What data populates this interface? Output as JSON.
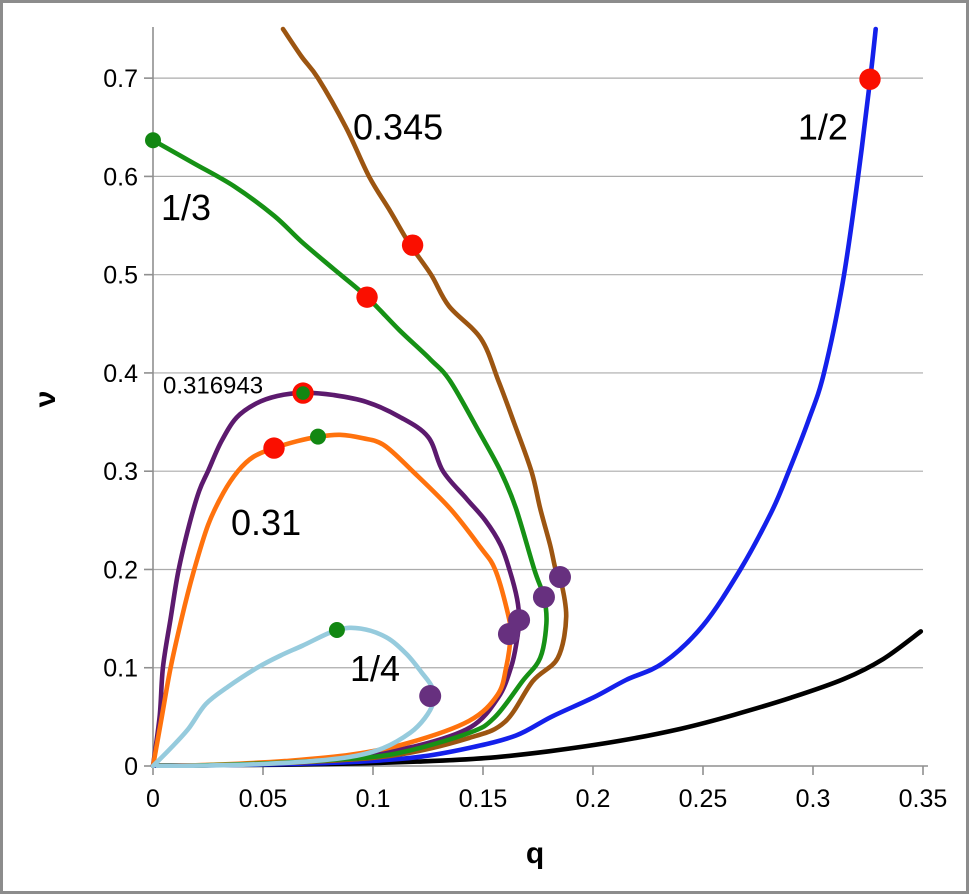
{
  "figure": {
    "background": "#ffffff",
    "border_color": "#8c8c8c"
  },
  "chart_data": {
    "type": "line",
    "title": "",
    "xlabel": "q",
    "ylabel": "ν",
    "xlim": [
      0,
      0.35
    ],
    "ylim": [
      0,
      0.75
    ],
    "grid": {
      "horizontal": true,
      "vertical": false,
      "color": "#ababab",
      "y_values": [
        0.1,
        0.2,
        0.3,
        0.4,
        0.5,
        0.6,
        0.7
      ]
    },
    "axis_color": "#8f8f8f",
    "text_color": "#000000",
    "x_ticks": {
      "values": [
        0,
        0.05,
        0.1,
        0.15,
        0.2,
        0.25,
        0.3,
        0.35
      ],
      "labels": [
        "0",
        "0.05",
        "0.1",
        "0.15",
        "0.2",
        "0.25",
        "0.3",
        "0.35"
      ]
    },
    "y_ticks": {
      "values": [
        0,
        0.1,
        0.2,
        0.3,
        0.4,
        0.5,
        0.6,
        0.7
      ],
      "labels": [
        "0",
        "0.1",
        "0.2",
        "0.3",
        "0.4",
        "0.5",
        "0.6",
        "0.7"
      ]
    },
    "series": [
      {
        "name": "black-curve",
        "label": "",
        "color": "#000000",
        "width": 4.6,
        "points": [
          [
            0,
            0.0005
          ],
          [
            0.04,
            0.001
          ],
          [
            0.08,
            0.002
          ],
          [
            0.12,
            0.0045
          ],
          [
            0.151,
            0.008
          ],
          [
            0.18,
            0.015
          ],
          [
            0.212,
            0.0255
          ],
          [
            0.24,
            0.038
          ],
          [
            0.264,
            0.052
          ],
          [
            0.29,
            0.0695
          ],
          [
            0.314,
            0.0885
          ],
          [
            0.332,
            0.109
          ],
          [
            0.349,
            0.137
          ]
        ]
      },
      {
        "name": "blue-curve",
        "label": "1/2",
        "color": "#1420eb",
        "width": 4.6,
        "points": [
          [
            0,
            0
          ],
          [
            0.05,
            0.0015
          ],
          [
            0.09,
            0.004
          ],
          [
            0.12,
            0.009
          ],
          [
            0.1436,
            0.0183
          ],
          [
            0.165,
            0.031
          ],
          [
            0.181,
            0.05
          ],
          [
            0.2,
            0.0695
          ],
          [
            0.215,
            0.0875
          ],
          [
            0.232,
            0.105
          ],
          [
            0.25,
            0.143
          ],
          [
            0.267,
            0.2
          ],
          [
            0.281,
            0.258
          ],
          [
            0.289,
            0.3
          ],
          [
            0.298,
            0.352
          ],
          [
            0.305,
            0.4
          ],
          [
            0.3136,
            0.493
          ],
          [
            0.3205,
            0.6
          ],
          [
            0.326,
            0.699
          ],
          [
            0.3285,
            0.75
          ]
        ]
      },
      {
        "name": "brown-curve",
        "label": "0.345",
        "color": "#9c5511",
        "width": 4.6,
        "points": [
          [
            0.0591,
            0.75
          ],
          [
            0.0675,
            0.722
          ],
          [
            0.075,
            0.7
          ],
          [
            0.0877,
            0.65
          ],
          [
            0.0982,
            0.6
          ],
          [
            0.108,
            0.564
          ],
          [
            0.1164,
            0.532
          ],
          [
            0.1264,
            0.5
          ],
          [
            0.1345,
            0.468
          ],
          [
            0.149,
            0.435
          ],
          [
            0.157,
            0.392
          ],
          [
            0.164,
            0.35
          ],
          [
            0.172,
            0.3
          ],
          [
            0.176,
            0.262
          ],
          [
            0.1805,
            0.225
          ],
          [
            0.183,
            0.2
          ],
          [
            0.185,
            0.1923
          ],
          [
            0.1878,
            0.152
          ],
          [
            0.184,
            0.11
          ],
          [
            0.1727,
            0.0865
          ],
          [
            0.16,
            0.045
          ],
          [
            0.1436,
            0.0285
          ],
          [
            0.11,
            0.011
          ],
          [
            0.07,
            0.004
          ],
          [
            0.03,
            0.001
          ],
          [
            0.002,
            0
          ]
        ]
      },
      {
        "name": "purple-curve",
        "label": "0.316943",
        "color": "#5c1a6e",
        "width": 4.6,
        "points": [
          [
            0,
            0
          ],
          [
            0.003,
            0.05
          ],
          [
            0.0045,
            0.1
          ],
          [
            0.008,
            0.15
          ],
          [
            0.0115,
            0.198
          ],
          [
            0.0164,
            0.245
          ],
          [
            0.021,
            0.28
          ],
          [
            0.025,
            0.3
          ],
          [
            0.031,
            0.33
          ],
          [
            0.038,
            0.3545
          ],
          [
            0.047,
            0.369
          ],
          [
            0.0565,
            0.3765
          ],
          [
            0.0682,
            0.3798
          ],
          [
            0.082,
            0.3775
          ],
          [
            0.097,
            0.3705
          ],
          [
            0.112,
            0.3555
          ],
          [
            0.125,
            0.335
          ],
          [
            0.1318,
            0.3
          ],
          [
            0.1425,
            0.272
          ],
          [
            0.151,
            0.25
          ],
          [
            0.158,
            0.225
          ],
          [
            0.162,
            0.2
          ],
          [
            0.1655,
            0.17
          ],
          [
            0.1664,
            0.1485
          ],
          [
            0.1652,
            0.125
          ],
          [
            0.1627,
            0.1
          ],
          [
            0.157,
            0.07
          ],
          [
            0.1445,
            0.0397
          ],
          [
            0.12,
            0.0205
          ],
          [
            0.09,
            0.0095
          ],
          [
            0.06,
            0.004
          ],
          [
            0.03,
            0.001
          ],
          [
            0.002,
            0
          ]
        ]
      },
      {
        "name": "orange-curve",
        "label": "0.31",
        "color": "#ff720d",
        "width": 4.6,
        "points": [
          [
            0,
            0
          ],
          [
            0.004,
            0.05
          ],
          [
            0.008,
            0.1
          ],
          [
            0.013,
            0.15
          ],
          [
            0.0185,
            0.198
          ],
          [
            0.025,
            0.245
          ],
          [
            0.032,
            0.278
          ],
          [
            0.0386,
            0.3
          ],
          [
            0.0455,
            0.3145
          ],
          [
            0.055,
            0.3235
          ],
          [
            0.0655,
            0.3305
          ],
          [
            0.075,
            0.335
          ],
          [
            0.085,
            0.337
          ],
          [
            0.0955,
            0.3335
          ],
          [
            0.105,
            0.3265
          ],
          [
            0.118,
            0.3
          ],
          [
            0.135,
            0.262
          ],
          [
            0.149,
            0.222
          ],
          [
            0.1555,
            0.2
          ],
          [
            0.161,
            0.158
          ],
          [
            0.1625,
            0.134
          ],
          [
            0.1605,
            0.1
          ],
          [
            0.1565,
            0.072
          ],
          [
            0.1436,
            0.0458
          ],
          [
            0.116,
            0.0234
          ],
          [
            0.09,
            0.0115
          ],
          [
            0.06,
            0.005
          ],
          [
            0.03,
            0.0015
          ],
          [
            0.002,
            0
          ]
        ]
      },
      {
        "name": "green-curve",
        "label": "1/3",
        "color": "#169115",
        "width": 4.6,
        "points": [
          [
            0,
            0.6368
          ],
          [
            0.018,
            0.614
          ],
          [
            0.0368,
            0.59
          ],
          [
            0.055,
            0.56
          ],
          [
            0.0673,
            0.534
          ],
          [
            0.082,
            0.506
          ],
          [
            0.0973,
            0.4771
          ],
          [
            0.112,
            0.4435
          ],
          [
            0.126,
            0.414
          ],
          [
            0.135,
            0.392
          ],
          [
            0.148,
            0.341
          ],
          [
            0.158,
            0.3
          ],
          [
            0.165,
            0.262
          ],
          [
            0.1733,
            0.2
          ],
          [
            0.1777,
            0.1719
          ],
          [
            0.1788,
            0.145
          ],
          [
            0.176,
            0.11
          ],
          [
            0.168,
            0.0865
          ],
          [
            0.1555,
            0.05
          ],
          [
            0.1436,
            0.0336
          ],
          [
            0.11,
            0.0125
          ],
          [
            0.08,
            0.006
          ],
          [
            0.05,
            0.0025
          ],
          [
            0.02,
            0.0005
          ],
          [
            0.002,
            0
          ]
        ]
      },
      {
        "name": "cyan-curve",
        "label": "1/4",
        "color": "#96cbdd",
        "width": 4.6,
        "points": [
          [
            0,
            0
          ],
          [
            0.008,
            0.018
          ],
          [
            0.016,
            0.0376
          ],
          [
            0.024,
            0.063
          ],
          [
            0.034,
            0.0805
          ],
          [
            0.047,
            0.0995
          ],
          [
            0.058,
            0.1125
          ],
          [
            0.068,
            0.1225
          ],
          [
            0.0836,
            0.1384
          ],
          [
            0.0945,
            0.1398
          ],
          [
            0.106,
            0.131
          ],
          [
            0.115,
            0.1145
          ],
          [
            0.122,
            0.0955
          ],
          [
            0.127,
            0.0795
          ],
          [
            0.1272,
            0.0635
          ],
          [
            0.1235,
            0.0485
          ],
          [
            0.117,
            0.034
          ],
          [
            0.105,
            0.0185
          ],
          [
            0.0925,
            0.0105
          ],
          [
            0.075,
            0.0055
          ],
          [
            0.05,
            0.002
          ],
          [
            0.025,
            0.0005
          ],
          [
            0.002,
            0
          ]
        ]
      }
    ],
    "markers": {
      "red_dots": {
        "color": "#fa0f00",
        "radius": 10.7,
        "points": [
          [
            0.3259,
            0.6989
          ],
          [
            0.118,
            0.53
          ],
          [
            0.0973,
            0.4771
          ],
          [
            0.055,
            0.3235
          ]
        ]
      },
      "ring_dot": {
        "outer_color": "#fa0f00",
        "inner_color": "#128712",
        "outer_radius": 10.7,
        "inner_radius": 6.8,
        "point": [
          0.0682,
          0.3795
        ]
      },
      "green_dots": {
        "color": "#128712",
        "radius": 8,
        "points": [
          [
            0,
            0.6368
          ],
          [
            0.075,
            0.3352
          ],
          [
            0.0836,
            0.1384
          ]
        ]
      },
      "purple_dots": {
        "color": "#67307f",
        "radius": 11,
        "points": [
          [
            0.126,
            0.0712
          ],
          [
            0.1618,
            0.1343
          ],
          [
            0.1664,
            0.1485
          ],
          [
            0.1777,
            0.1719
          ],
          [
            0.185,
            0.1923
          ]
        ]
      }
    },
    "annotations": [
      {
        "text": "0.345",
        "q": 0.1114,
        "v": 0.6505,
        "size": 36
      },
      {
        "text": "1/2",
        "q": 0.3045,
        "v": 0.6505,
        "size": 36
      },
      {
        "text": "1/3",
        "q": 0.015,
        "v": 0.569,
        "size": 36
      },
      {
        "text": "0.316943",
        "q": 0.0273,
        "v": 0.388,
        "size": 24
      },
      {
        "text": "0.31",
        "q": 0.0514,
        "v": 0.2485,
        "size": 36
      },
      {
        "text": "1/4",
        "q": 0.1009,
        "v": 0.0998,
        "size": 36
      }
    ],
    "legend": null
  }
}
